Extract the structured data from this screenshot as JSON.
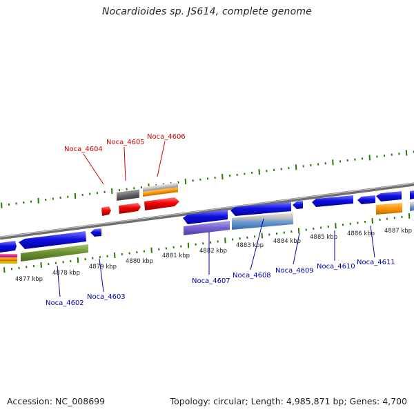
{
  "title": "Nocardioides sp. JS614, complete genome",
  "footer": {
    "accession": "Accession: NC_008699",
    "stats": "Topology: circular; Length: 4,985,871 bp; Genes: 4,700"
  },
  "scale": {
    "unit": "kbp",
    "labels": [
      "4877 kbp",
      "4878 kbp",
      "4879 kbp",
      "4880 kbp",
      "4881 kbp",
      "4882 kbp",
      "4883 kbp",
      "4884 kbp",
      "4885 kbp",
      "4886 kbp",
      "4887 kbp"
    ]
  },
  "gene_labels_forward": [
    "Noca_4604",
    "Noca_4605",
    "Noca_4606"
  ],
  "gene_labels_reverse": [
    "Noca_4602",
    "Noca_4603",
    "Noca_4607",
    "Noca_4608",
    "Noca_4609",
    "Noca_4610",
    "Noca_4611"
  ],
  "colors": {
    "forward_label": "#cc0000",
    "reverse_label": "#0000aa",
    "tick": "#2a7a00",
    "backbone": "#8a8a8a",
    "gene_blue": "#1010e0",
    "gene_red": "#ee0000"
  }
}
